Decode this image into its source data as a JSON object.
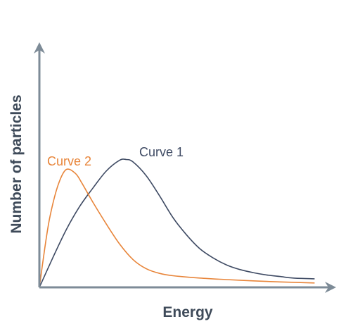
{
  "chart_data": {
    "type": "line",
    "title": "",
    "xlabel": "Energy",
    "ylabel": "Number of particles",
    "grid": false,
    "xlim": [
      0,
      10
    ],
    "ylim": [
      0,
      10
    ],
    "series": [
      {
        "name": "Curve 1",
        "color": "#3e4a63",
        "x": [
          0,
          0.5,
          1,
          1.5,
          2,
          2.5,
          3,
          3.25,
          3.5,
          4,
          4.5,
          5,
          5.5,
          6,
          6.5,
          7,
          7.5,
          8,
          8.5,
          9,
          9.5,
          10.3
        ],
        "y": [
          0,
          1.9,
          3.7,
          5.2,
          6.4,
          7.5,
          8.2,
          8.25,
          8.1,
          7.2,
          5.9,
          4.5,
          3.4,
          2.5,
          1.9,
          1.45,
          1.15,
          0.95,
          0.8,
          0.7,
          0.6,
          0.55
        ]
      },
      {
        "name": "Curve 2",
        "color": "#e8853a",
        "x": [
          0,
          0.2,
          0.4,
          0.7,
          1,
          1.35,
          1.6,
          2,
          2.5,
          3,
          3.5,
          4,
          4.5,
          5,
          6,
          7,
          8,
          9,
          10.3
        ],
        "y": [
          0,
          2.5,
          4.6,
          6.6,
          7.6,
          7.35,
          6.7,
          5.5,
          4.1,
          2.8,
          1.8,
          1.2,
          0.9,
          0.75,
          0.6,
          0.5,
          0.42,
          0.35,
          0.28
        ]
      }
    ]
  }
}
